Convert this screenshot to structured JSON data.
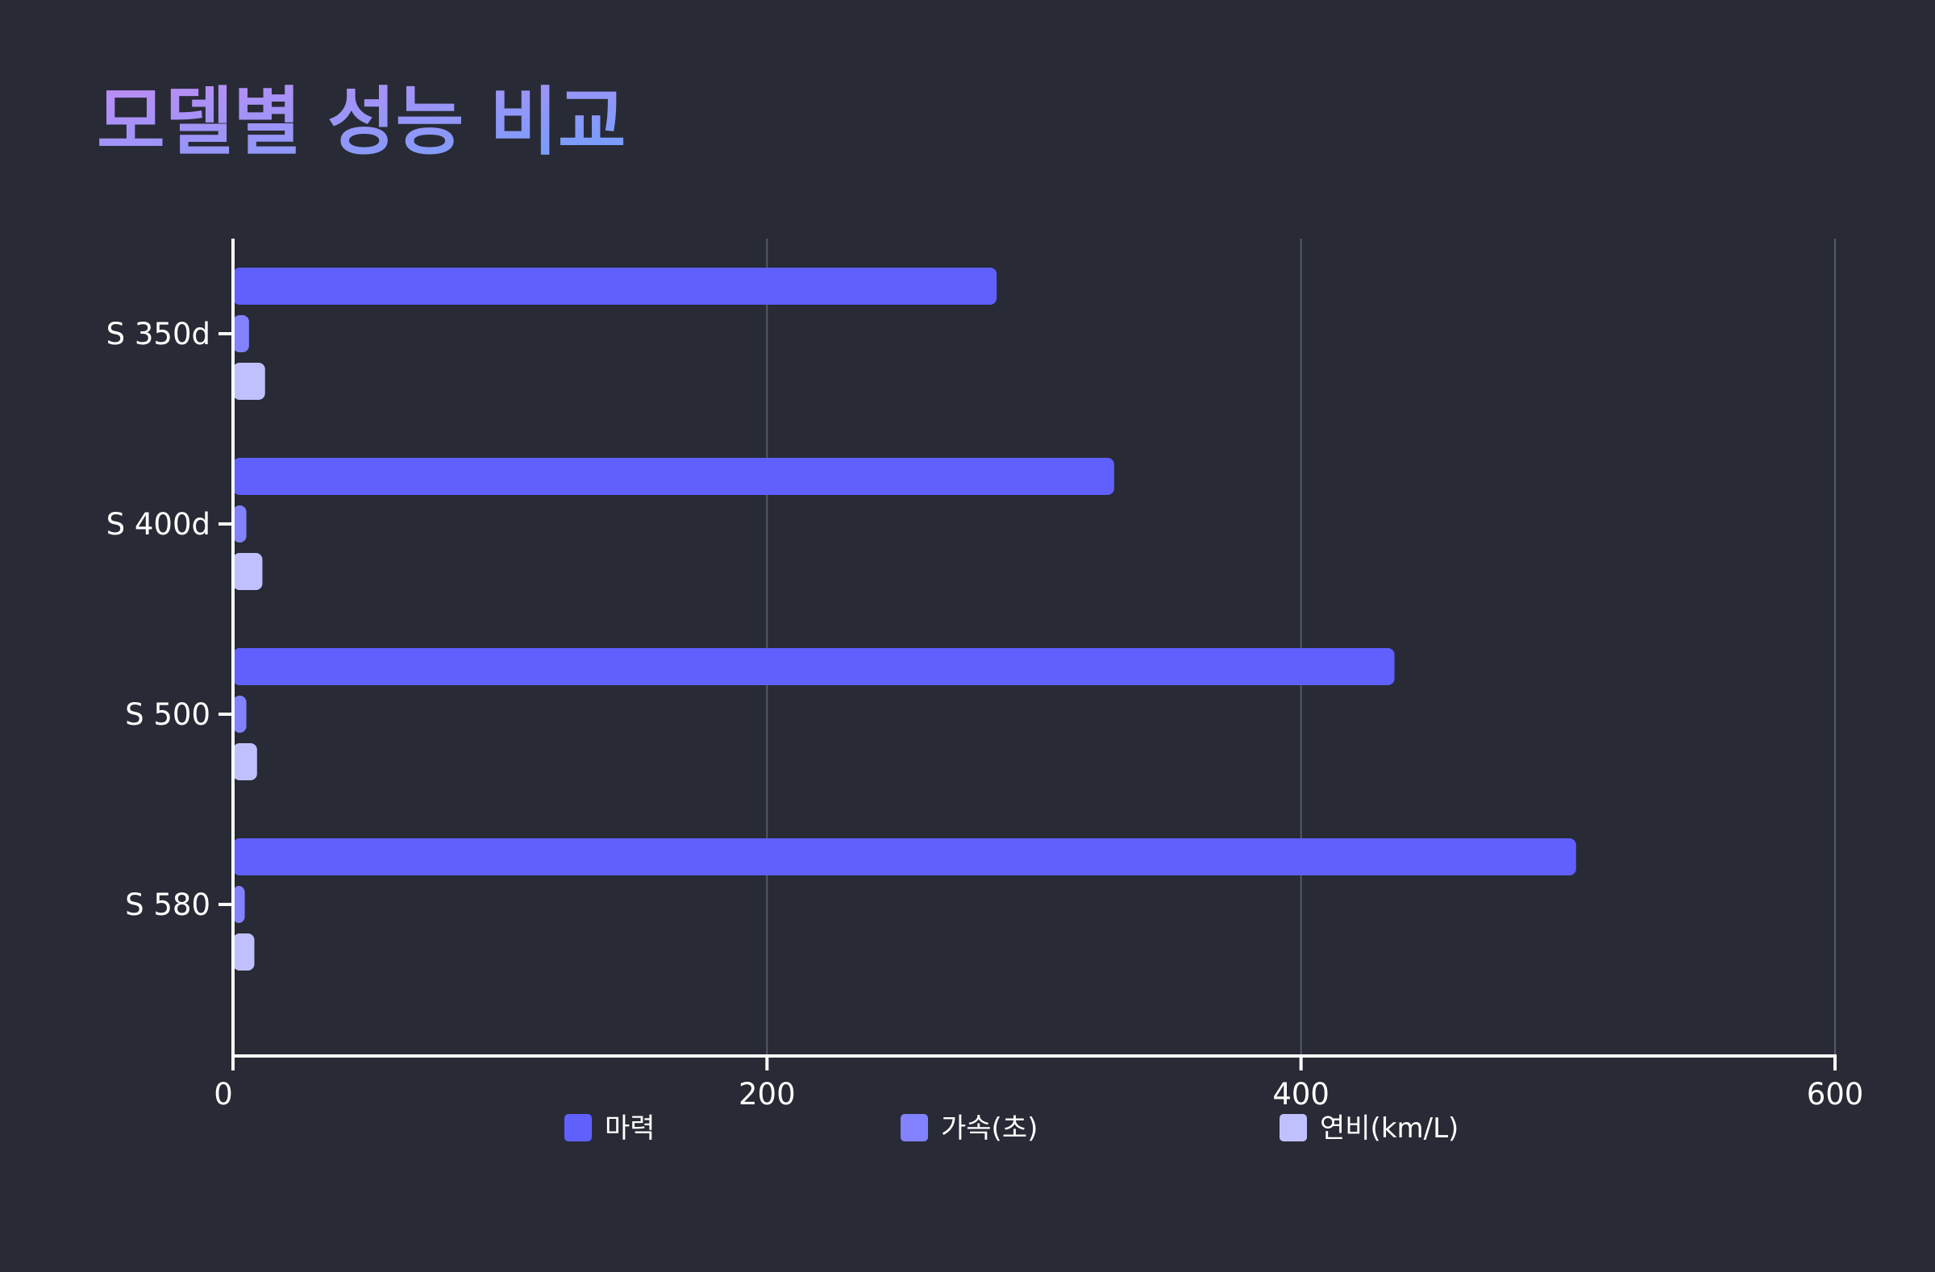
{
  "chart_data": {
    "type": "bar",
    "orientation": "horizontal",
    "title": "모델별 성능 비교",
    "categories": [
      "S 350d",
      "S 400d",
      "S 500",
      "S 580"
    ],
    "series": [
      {
        "name": "마력",
        "values": [
          286,
          330,
          435,
          503
        ],
        "color": "#6060ff"
      },
      {
        "name": "가속(초)",
        "values": [
          6,
          5,
          5,
          4.4
        ],
        "color": "#8282ff"
      },
      {
        "name": "연비(km/L)",
        "values": [
          12,
          11,
          9,
          8
        ],
        "color": "#c0c0ff"
      }
    ],
    "xlim": [
      0,
      600
    ],
    "xticks": [
      0,
      200,
      400,
      600
    ],
    "grid": true,
    "legend_position": "bottom"
  },
  "colors": {
    "background": "#282b35",
    "axis": "#ffffff",
    "grid": "#555a66",
    "text": "#ffffff",
    "title_gradient_start": "#c08cf5",
    "title_gradient_end": "#6f9ffb"
  }
}
